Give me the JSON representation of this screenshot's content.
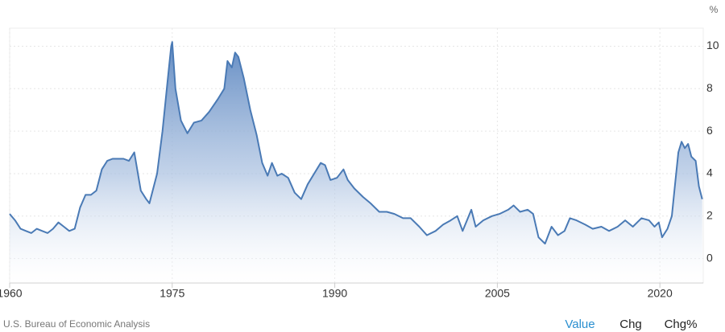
{
  "chart_data": {
    "type": "area",
    "unit": "%",
    "source": "U.S. Bureau of Economic Analysis",
    "color": "#4a7ab5",
    "grid": true,
    "x": [
      1960,
      1960.5,
      1961,
      1961.5,
      1962,
      1962.5,
      1963,
      1963.5,
      1964,
      1964.5,
      1965,
      1965.5,
      1966,
      1966.5,
      1967,
      1967.5,
      1968,
      1968.5,
      1969,
      1969.5,
      1970,
      1970.5,
      1971,
      1971.5,
      1972.1,
      1972.6,
      1972.9,
      1973.6,
      1974.1,
      1974.6,
      1974.9,
      1975.0,
      1975.3,
      1975.8,
      1976.4,
      1977.0,
      1977.7,
      1978.4,
      1979.2,
      1979.8,
      1980.1,
      1980.5,
      1980.8,
      1981.1,
      1981.6,
      1982.2,
      1982.8,
      1983.3,
      1983.8,
      1984.2,
      1984.7,
      1985.1,
      1985.7,
      1986.3,
      1986.9,
      1987.5,
      1988.1,
      1988.7,
      1989.1,
      1989.6,
      1990.2,
      1990.8,
      1991.2,
      1991.8,
      1992.6,
      1993.3,
      1994.1,
      1994.8,
      1995.5,
      1996.3,
      1997.0,
      1997.8,
      1998.5,
      1999.3,
      2000.0,
      2000.7,
      2001.3,
      2001.8,
      2002.2,
      2002.6,
      2003.0,
      2003.7,
      2004.5,
      2005.2,
      2006.0,
      2006.5,
      2007.1,
      2007.8,
      2008.3,
      2008.8,
      2009.4,
      2010.0,
      2010.6,
      2011.2,
      2011.7,
      2012.3,
      2013.1,
      2013.8,
      2014.6,
      2015.3,
      2016.1,
      2016.8,
      2017.5,
      2018.3,
      2019.0,
      2019.5,
      2019.9,
      2020.2,
      2020.7,
      2021.1,
      2021.4,
      2021.7,
      2022.0,
      2022.3,
      2022.6,
      2022.9,
      2023.3,
      2023.6,
      2023.9
    ],
    "values": [
      2.1,
      1.8,
      1.4,
      1.3,
      1.2,
      1.4,
      1.3,
      1.2,
      1.4,
      1.7,
      1.5,
      1.3,
      1.4,
      2.4,
      3.0,
      3.0,
      3.2,
      4.2,
      4.6,
      4.7,
      4.7,
      4.7,
      4.6,
      5.0,
      3.2,
      2.8,
      2.6,
      4.0,
      6.0,
      8.5,
      10.0,
      10.2,
      8.0,
      6.5,
      5.9,
      6.4,
      6.5,
      6.9,
      7.5,
      8.0,
      9.3,
      9.0,
      9.7,
      9.5,
      8.5,
      7.0,
      5.8,
      4.5,
      3.9,
      4.5,
      3.9,
      4.0,
      3.8,
      3.1,
      2.8,
      3.5,
      4.0,
      4.5,
      4.4,
      3.7,
      3.8,
      4.2,
      3.7,
      3.3,
      2.9,
      2.6,
      2.2,
      2.2,
      2.1,
      1.9,
      1.9,
      1.5,
      1.1,
      1.3,
      1.6,
      1.8,
      2.0,
      1.3,
      1.8,
      2.3,
      1.5,
      1.8,
      2.0,
      2.1,
      2.3,
      2.5,
      2.2,
      2.3,
      2.1,
      1.0,
      0.7,
      1.5,
      1.1,
      1.3,
      1.9,
      1.8,
      1.6,
      1.4,
      1.5,
      1.3,
      1.5,
      1.8,
      1.5,
      1.9,
      1.8,
      1.5,
      1.7,
      1.0,
      1.4,
      2.0,
      3.5,
      5.0,
      5.5,
      5.2,
      5.4,
      4.8,
      4.6,
      3.4,
      2.8
    ],
    "xlim": [
      1960,
      2024
    ],
    "xticks": [
      1960,
      1975,
      1990,
      2005,
      2020
    ],
    "ylim": [
      -1.15,
      10.85
    ],
    "yticks": [
      0,
      2,
      4,
      6,
      8,
      10
    ]
  },
  "controls": [
    "Value",
    "Chg",
    "Chg%"
  ]
}
